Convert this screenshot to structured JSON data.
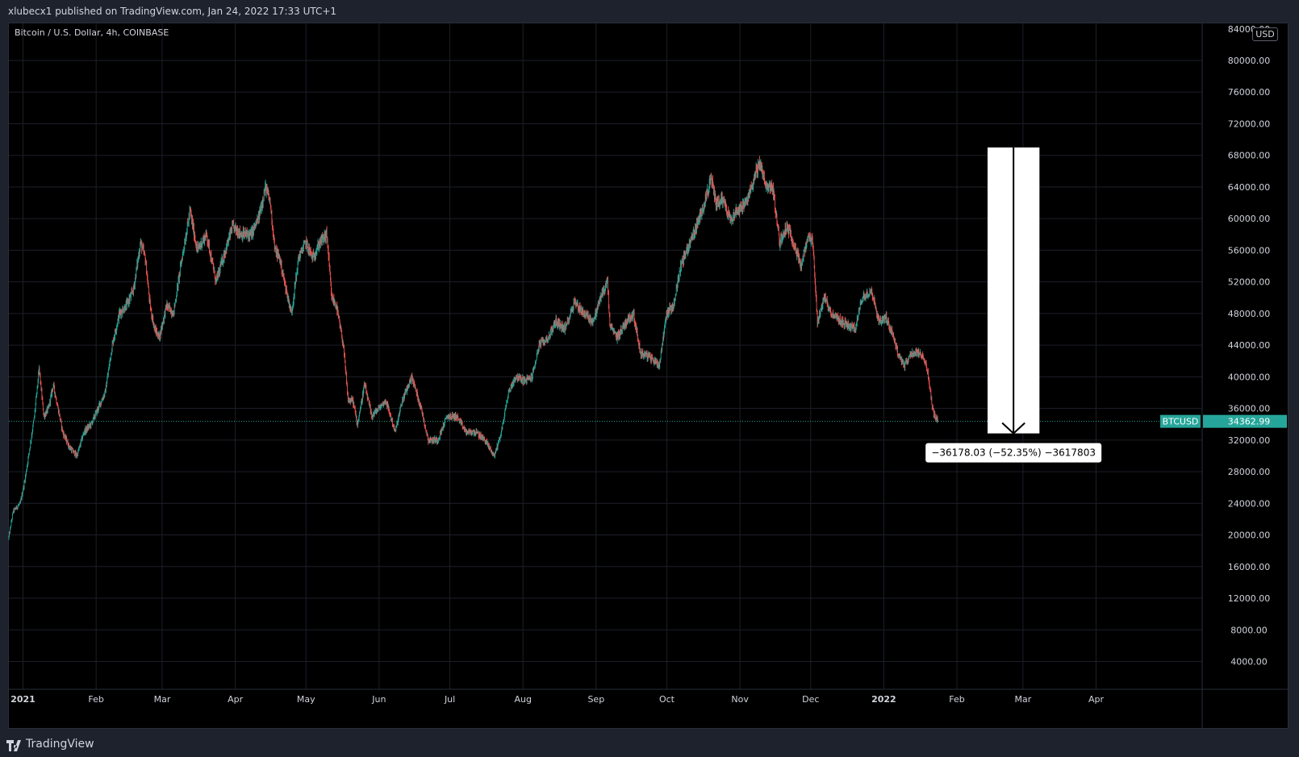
{
  "publisher_line": "xlubecx1 published on TradingView.com, Jan 24, 2022 17:33 UTC+1",
  "symbol_title": "Bitcoin / U.S. Dollar, 4h, COINBASE",
  "currency_button": "USD",
  "footer": {
    "logo_icon": "tradingview-logo-icon",
    "brand": "TradingView"
  },
  "colors": {
    "up": "#26a69a",
    "down": "#ef5350",
    "background": "#000000",
    "frame": "#1e222d",
    "grid": "#1c1f28",
    "price_line": "#26a69a"
  },
  "chart_data": {
    "type": "candlestick",
    "symbol": "BTCUSD",
    "interval": "4h",
    "exchange": "COINBASE",
    "y_axis": {
      "ticks": [
        "4000.00",
        "8000.00",
        "12000.00",
        "16000.00",
        "20000.00",
        "24000.00",
        "28000.00",
        "32000.00",
        "36000.00",
        "40000.00",
        "44000.00",
        "48000.00",
        "52000.00",
        "56000.00",
        "60000.00",
        "64000.00",
        "68000.00",
        "72000.00",
        "76000.00",
        "80000.00",
        "84000.00"
      ],
      "ylim": [
        0,
        85000
      ]
    },
    "x_axis": {
      "ticks": [
        "2021",
        "Feb",
        "Mar",
        "Apr",
        "May",
        "Jun",
        "Jul",
        "Aug",
        "Sep",
        "Oct",
        "Nov",
        "Dec",
        "2022",
        "Feb",
        "Mar",
        "Apr"
      ],
      "tick_dates": [
        "2021-01-01",
        "2021-02-01",
        "2021-03-01",
        "2021-04-01",
        "2021-05-01",
        "2021-06-01",
        "2021-07-01",
        "2021-08-01",
        "2021-09-01",
        "2021-10-01",
        "2021-11-01",
        "2021-12-01",
        "2022-01-01",
        "2022-02-01",
        "2022-03-01",
        "2022-04-01"
      ],
      "xlim": [
        "2020-12-26",
        "2022-05-16"
      ]
    },
    "price_path": [
      {
        "date": "2020-12-26",
        "price": 19500
      },
      {
        "date": "2020-12-28",
        "price": 23000
      },
      {
        "date": "2020-12-31",
        "price": 24000
      },
      {
        "date": "2021-01-02",
        "price": 27000
      },
      {
        "date": "2021-01-04",
        "price": 31000
      },
      {
        "date": "2021-01-06",
        "price": 35000
      },
      {
        "date": "2021-01-08",
        "price": 41000
      },
      {
        "date": "2021-01-10",
        "price": 35000
      },
      {
        "date": "2021-01-12",
        "price": 36000
      },
      {
        "date": "2021-01-14",
        "price": 39000
      },
      {
        "date": "2021-01-16",
        "price": 36000
      },
      {
        "date": "2021-01-18",
        "price": 33000
      },
      {
        "date": "2021-01-21",
        "price": 31000
      },
      {
        "date": "2021-01-24",
        "price": 30000
      },
      {
        "date": "2021-01-27",
        "price": 33000
      },
      {
        "date": "2021-01-30",
        "price": 34000
      },
      {
        "date": "2021-02-02",
        "price": 36000
      },
      {
        "date": "2021-02-05",
        "price": 38000
      },
      {
        "date": "2021-02-08",
        "price": 44000
      },
      {
        "date": "2021-02-11",
        "price": 48000
      },
      {
        "date": "2021-02-14",
        "price": 49000
      },
      {
        "date": "2021-02-17",
        "price": 51000
      },
      {
        "date": "2021-02-20",
        "price": 57000
      },
      {
        "date": "2021-02-22",
        "price": 55000
      },
      {
        "date": "2021-02-24",
        "price": 49000
      },
      {
        "date": "2021-02-26",
        "price": 46000
      },
      {
        "date": "2021-02-28",
        "price": 45000
      },
      {
        "date": "2021-03-03",
        "price": 49000
      },
      {
        "date": "2021-03-06",
        "price": 48000
      },
      {
        "date": "2021-03-09",
        "price": 54000
      },
      {
        "date": "2021-03-13",
        "price": 61000
      },
      {
        "date": "2021-03-16",
        "price": 56000
      },
      {
        "date": "2021-03-20",
        "price": 58000
      },
      {
        "date": "2021-03-24",
        "price": 52000
      },
      {
        "date": "2021-03-27",
        "price": 55000
      },
      {
        "date": "2021-03-31",
        "price": 59000
      },
      {
        "date": "2021-04-04",
        "price": 58000
      },
      {
        "date": "2021-04-08",
        "price": 58000
      },
      {
        "date": "2021-04-11",
        "price": 60000
      },
      {
        "date": "2021-04-14",
        "price": 64000
      },
      {
        "date": "2021-04-16",
        "price": 62000
      },
      {
        "date": "2021-04-18",
        "price": 56000
      },
      {
        "date": "2021-04-20",
        "price": 55000
      },
      {
        "date": "2021-04-22",
        "price": 52000
      },
      {
        "date": "2021-04-25",
        "price": 48000
      },
      {
        "date": "2021-04-28",
        "price": 55000
      },
      {
        "date": "2021-05-01",
        "price": 57000
      },
      {
        "date": "2021-05-04",
        "price": 55000
      },
      {
        "date": "2021-05-07",
        "price": 57000
      },
      {
        "date": "2021-05-10",
        "price": 58000
      },
      {
        "date": "2021-05-12",
        "price": 50000
      },
      {
        "date": "2021-05-14",
        "price": 49000
      },
      {
        "date": "2021-05-17",
        "price": 44000
      },
      {
        "date": "2021-05-19",
        "price": 37000
      },
      {
        "date": "2021-05-21",
        "price": 37000
      },
      {
        "date": "2021-05-23",
        "price": 34000
      },
      {
        "date": "2021-05-26",
        "price": 39000
      },
      {
        "date": "2021-05-29",
        "price": 35000
      },
      {
        "date": "2021-06-01",
        "price": 36000
      },
      {
        "date": "2021-06-04",
        "price": 37000
      },
      {
        "date": "2021-06-08",
        "price": 33000
      },
      {
        "date": "2021-06-11",
        "price": 37000
      },
      {
        "date": "2021-06-15",
        "price": 40000
      },
      {
        "date": "2021-06-19",
        "price": 36000
      },
      {
        "date": "2021-06-22",
        "price": 32000
      },
      {
        "date": "2021-06-26",
        "price": 32000
      },
      {
        "date": "2021-06-30",
        "price": 35000
      },
      {
        "date": "2021-07-04",
        "price": 35000
      },
      {
        "date": "2021-07-08",
        "price": 33000
      },
      {
        "date": "2021-07-12",
        "price": 33000
      },
      {
        "date": "2021-07-16",
        "price": 32000
      },
      {
        "date": "2021-07-20",
        "price": 30000
      },
      {
        "date": "2021-07-23",
        "price": 33000
      },
      {
        "date": "2021-07-26",
        "price": 38000
      },
      {
        "date": "2021-07-29",
        "price": 40000
      },
      {
        "date": "2021-08-02",
        "price": 39500
      },
      {
        "date": "2021-08-05",
        "price": 40000
      },
      {
        "date": "2021-08-08",
        "price": 44000
      },
      {
        "date": "2021-08-12",
        "price": 45000
      },
      {
        "date": "2021-08-15",
        "price": 47000
      },
      {
        "date": "2021-08-19",
        "price": 46000
      },
      {
        "date": "2021-08-23",
        "price": 49500
      },
      {
        "date": "2021-08-27",
        "price": 48000
      },
      {
        "date": "2021-08-31",
        "price": 47000
      },
      {
        "date": "2021-09-03",
        "price": 50000
      },
      {
        "date": "2021-09-06",
        "price": 52000
      },
      {
        "date": "2021-09-07",
        "price": 46500
      },
      {
        "date": "2021-09-10",
        "price": 45000
      },
      {
        "date": "2021-09-14",
        "price": 47000
      },
      {
        "date": "2021-09-17",
        "price": 48000
      },
      {
        "date": "2021-09-20",
        "price": 43000
      },
      {
        "date": "2021-09-24",
        "price": 42500
      },
      {
        "date": "2021-09-28",
        "price": 41500
      },
      {
        "date": "2021-10-01",
        "price": 48000
      },
      {
        "date": "2021-10-04",
        "price": 49000
      },
      {
        "date": "2021-10-07",
        "price": 54000
      },
      {
        "date": "2021-10-11",
        "price": 57000
      },
      {
        "date": "2021-10-15",
        "price": 60000
      },
      {
        "date": "2021-10-20",
        "price": 65000
      },
      {
        "date": "2021-10-22",
        "price": 62000
      },
      {
        "date": "2021-10-25",
        "price": 62500
      },
      {
        "date": "2021-10-28",
        "price": 60000
      },
      {
        "date": "2021-10-31",
        "price": 61000
      },
      {
        "date": "2021-11-04",
        "price": 62000
      },
      {
        "date": "2021-11-08",
        "price": 66000
      },
      {
        "date": "2021-11-10",
        "price": 67000
      },
      {
        "date": "2021-11-12",
        "price": 64000
      },
      {
        "date": "2021-11-15",
        "price": 64000
      },
      {
        "date": "2021-11-18",
        "price": 57000
      },
      {
        "date": "2021-11-21",
        "price": 59000
      },
      {
        "date": "2021-11-24",
        "price": 57000
      },
      {
        "date": "2021-11-27",
        "price": 54000
      },
      {
        "date": "2021-11-30",
        "price": 57500
      },
      {
        "date": "2021-12-02",
        "price": 57000
      },
      {
        "date": "2021-12-04",
        "price": 47000
      },
      {
        "date": "2021-12-07",
        "price": 50000
      },
      {
        "date": "2021-12-10",
        "price": 48000
      },
      {
        "date": "2021-12-14",
        "price": 47000
      },
      {
        "date": "2021-12-17",
        "price": 46500
      },
      {
        "date": "2021-12-20",
        "price": 46000
      },
      {
        "date": "2021-12-23",
        "price": 50000
      },
      {
        "date": "2021-12-27",
        "price": 51000
      },
      {
        "date": "2021-12-30",
        "price": 47000
      },
      {
        "date": "2022-01-02",
        "price": 47500
      },
      {
        "date": "2022-01-05",
        "price": 45500
      },
      {
        "date": "2022-01-07",
        "price": 43000
      },
      {
        "date": "2022-01-10",
        "price": 41500
      },
      {
        "date": "2022-01-13",
        "price": 43000
      },
      {
        "date": "2022-01-16",
        "price": 43000
      },
      {
        "date": "2022-01-19",
        "price": 42000
      },
      {
        "date": "2022-01-21",
        "price": 38000
      },
      {
        "date": "2022-01-22",
        "price": 35500
      },
      {
        "date": "2022-01-24",
        "price": 34363
      }
    ],
    "last_price_label": {
      "symbol": "BTCUSD",
      "value": "34362.99"
    },
    "last_price": 34362.99,
    "price_range_tool": {
      "from_date": "2022-02-14",
      "to_date": "2022-03-08",
      "from_price": 69000,
      "to_price": 32840,
      "label": "−36178.03 (−52.35%) −3617803"
    }
  }
}
